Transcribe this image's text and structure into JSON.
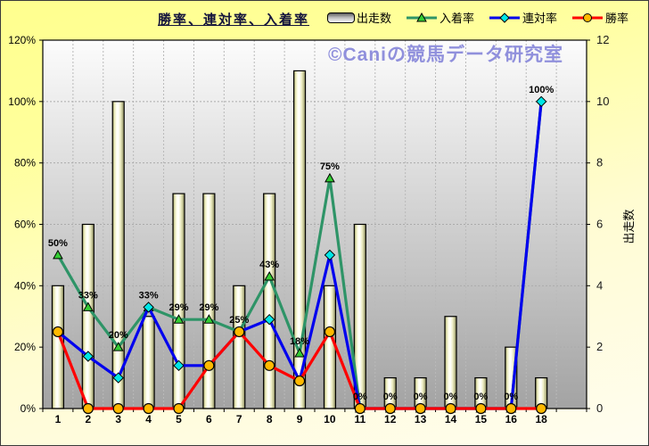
{
  "page": {
    "title": "勝率、連対率、入着率",
    "watermark": "©Caniの競馬データ研究室"
  },
  "legend": {
    "items": [
      {
        "label": "出走数"
      },
      {
        "label": "入着率"
      },
      {
        "label": "連対率"
      },
      {
        "label": "勝率"
      }
    ]
  },
  "chart_data": {
    "type": "combo",
    "title": "勝率、連対率、入着率",
    "categories": [
      "1",
      "2",
      "3",
      "4",
      "5",
      "6",
      "7",
      "8",
      "9",
      "10",
      "11",
      "12",
      "13",
      "14",
      "15",
      "16",
      "18"
    ],
    "left_axis": {
      "ticks": [
        "0%",
        "20%",
        "40%",
        "60%",
        "80%",
        "100%",
        "120%"
      ],
      "min": 0,
      "max": 120
    },
    "right_axis": {
      "title": "出走数",
      "ticks": [
        "0",
        "2",
        "4",
        "6",
        "8",
        "10",
        "12"
      ],
      "min": 0,
      "max": 12
    },
    "grid": {
      "horizontal": true,
      "vertical": true,
      "style": "dashed"
    },
    "series": [
      {
        "name": "出走数",
        "type": "bar",
        "axis": "right",
        "outline": "#000000",
        "fill_light": "#ffffff",
        "fill_dark": "#74744c",
        "values": [
          4,
          6,
          10,
          3,
          7,
          7,
          4,
          7,
          11,
          4,
          6,
          1,
          1,
          3,
          1,
          2,
          1
        ]
      },
      {
        "name": "入着率",
        "type": "line",
        "axis": "left",
        "color": "#2e9467",
        "marker": "triangle",
        "marker_color": "#33cc33",
        "show_labels": true,
        "marker_hidden_at": [
          16
        ],
        "values": [
          50,
          33,
          20,
          33,
          29,
          29,
          25,
          43,
          18,
          75,
          0,
          0,
          0,
          0,
          0,
          0,
          100
        ],
        "labels": [
          "50%",
          "33%",
          "20%",
          "33%",
          "29%",
          "29%",
          "25%",
          "43%",
          "18%",
          "75%",
          "0%",
          "0%",
          "0%",
          "0%",
          "0%",
          "0%",
          "100%"
        ]
      },
      {
        "name": "連対率",
        "type": "line",
        "axis": "left",
        "color": "#0000ee",
        "marker": "diamond",
        "marker_color": "#00e6e6",
        "values": [
          25,
          17,
          10,
          33,
          14,
          14,
          25,
          29,
          9,
          50,
          0,
          0,
          0,
          0,
          0,
          0,
          100
        ]
      },
      {
        "name": "勝率",
        "type": "line",
        "axis": "left",
        "color": "#ff0000",
        "marker": "circle",
        "marker_color": "#ffb900",
        "values": [
          25,
          0,
          0,
          0,
          0,
          14,
          25,
          14,
          9,
          25,
          0,
          0,
          0,
          0,
          0,
          0,
          0
        ]
      }
    ]
  }
}
